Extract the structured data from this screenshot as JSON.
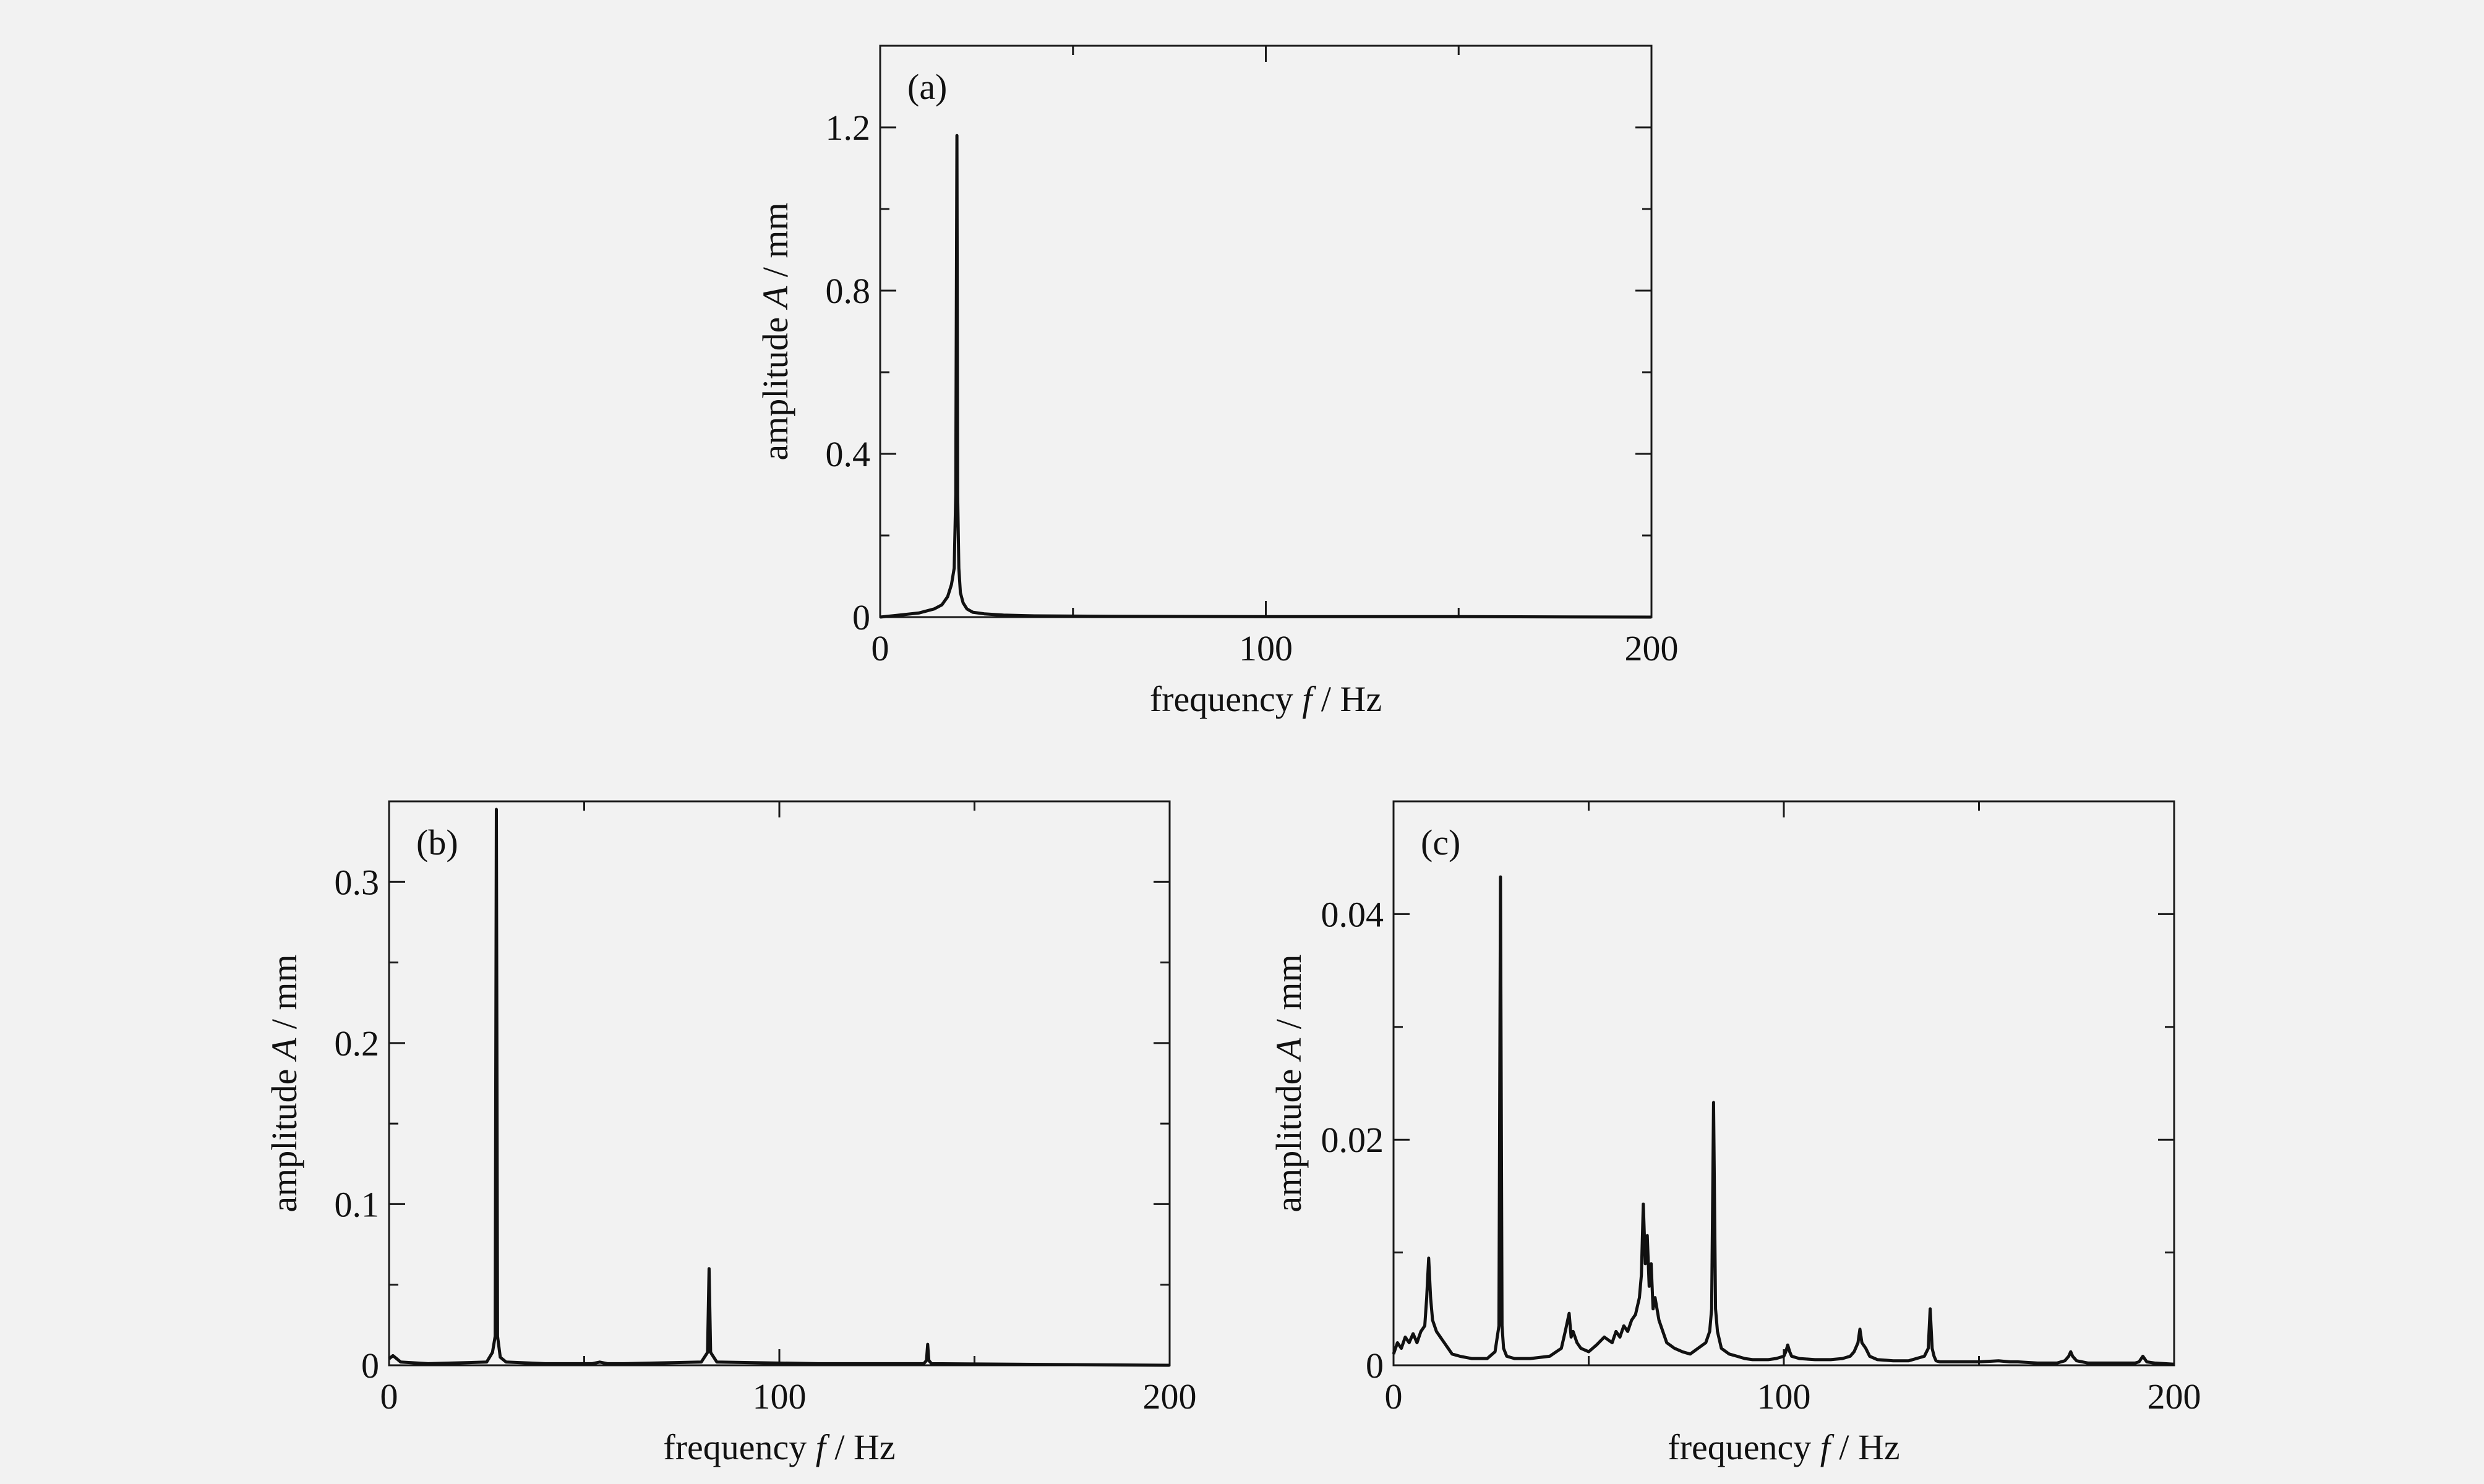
{
  "chart_data": [
    {
      "id": "a",
      "type": "line",
      "panel_label": "(a)",
      "xlabel": "frequency f / Hz",
      "xlabel_parts": [
        "frequency ",
        "f",
        " / Hz"
      ],
      "ylabel": "amplitude A / mm",
      "ylabel_parts": [
        "amplitude ",
        "A",
        " / mm"
      ],
      "xlim": [
        0,
        200
      ],
      "ylim": [
        0,
        1.4
      ],
      "xticks": [
        0,
        100,
        200
      ],
      "xtick_labels": [
        "0",
        "100",
        "200"
      ],
      "yticks": [
        0,
        0.4,
        0.8,
        1.2
      ],
      "ytick_labels": [
        "0",
        "0.4",
        "0.8",
        "1.2"
      ],
      "minor_xticks": [
        50,
        150
      ],
      "minor_yticks": [
        0.2,
        0.6,
        1.0
      ],
      "grid": false,
      "series": [
        {
          "x": [
            0,
            5,
            10,
            14,
            16,
            17.5,
            18.5,
            19.2,
            19.6,
            19.9,
            20.1,
            20.4,
            20.8,
            21.5,
            22.5,
            24,
            27,
            32,
            40,
            60,
            100,
            150,
            200
          ],
          "y": [
            0.0,
            0.005,
            0.01,
            0.02,
            0.03,
            0.05,
            0.08,
            0.12,
            0.3,
            1.18,
            0.3,
            0.12,
            0.06,
            0.035,
            0.02,
            0.012,
            0.008,
            0.005,
            0.003,
            0.002,
            0.001,
            0.001,
            0.0
          ]
        }
      ]
    },
    {
      "id": "b",
      "type": "line",
      "panel_label": "(b)",
      "xlabel": "frequency f / Hz",
      "xlabel_parts": [
        "frequency ",
        "f",
        " / Hz"
      ],
      "ylabel": "amplitude A / mm",
      "ylabel_parts": [
        "amplitude ",
        "A",
        " / mm"
      ],
      "xlim": [
        0,
        200
      ],
      "ylim": [
        0,
        0.35
      ],
      "xticks": [
        0,
        100,
        200
      ],
      "xtick_labels": [
        "0",
        "100",
        "200"
      ],
      "yticks": [
        0,
        0.1,
        0.2,
        0.3
      ],
      "ytick_labels": [
        "0",
        "0.1",
        "0.2",
        "0.3"
      ],
      "minor_xticks": [
        50,
        150
      ],
      "minor_yticks": [
        0.05,
        0.15,
        0.25
      ],
      "grid": false,
      "series": [
        {
          "x": [
            0,
            1,
            2,
            3,
            10,
            25,
            26.5,
            27.2,
            27.5,
            27.8,
            28.5,
            30,
            40,
            52,
            54,
            56,
            60,
            80,
            81.6,
            82,
            82.4,
            84,
            110,
            137,
            137.7,
            138,
            138.3,
            139,
            170,
            200
          ],
          "y": [
            0.004,
            0.006,
            0.004,
            0.002,
            0.001,
            0.002,
            0.008,
            0.018,
            0.345,
            0.018,
            0.005,
            0.002,
            0.001,
            0.001,
            0.002,
            0.001,
            0.001,
            0.002,
            0.008,
            0.06,
            0.008,
            0.002,
            0.001,
            0.001,
            0.003,
            0.013,
            0.003,
            0.001,
            0.0005,
            0.0
          ]
        }
      ]
    },
    {
      "id": "c",
      "type": "line",
      "panel_label": "(c)",
      "xlabel": "frequency f / Hz",
      "xlabel_parts": [
        "frequency ",
        "f",
        " / Hz"
      ],
      "ylabel": "amplitude A / mm",
      "ylabel_parts": [
        "amplitude ",
        "A",
        " / mm"
      ],
      "xlim": [
        0,
        200
      ],
      "ylim": [
        0,
        0.05
      ],
      "xticks": [
        0,
        100,
        200
      ],
      "xtick_labels": [
        "0",
        "100",
        "200"
      ],
      "yticks": [
        0,
        0.02,
        0.04
      ],
      "ytick_labels": [
        "0",
        "0.02",
        "0.04"
      ],
      "minor_xticks": [
        50,
        150
      ],
      "minor_yticks": [
        0.01,
        0.03
      ],
      "grid": false,
      "series": [
        {
          "x": [
            0,
            1,
            2,
            3,
            4,
            5,
            6,
            7,
            8,
            8.5,
            9,
            9.5,
            10,
            11,
            12,
            13,
            14,
            15,
            17,
            20,
            24,
            26,
            27,
            27.4,
            27.8,
            28.2,
            29,
            31,
            35,
            40,
            43,
            44,
            45,
            45.5,
            46,
            47,
            48,
            50,
            52,
            54,
            56,
            57,
            58,
            59,
            60,
            61,
            62,
            63,
            63.5,
            64,
            64.5,
            65,
            65.5,
            66,
            66.5,
            67,
            68,
            69,
            70,
            72,
            74,
            76,
            78,
            80,
            81,
            81.5,
            82,
            82.5,
            83,
            84,
            86,
            88,
            90,
            92,
            94,
            96,
            98,
            100,
            100.5,
            101,
            101.5,
            102,
            104,
            108,
            112,
            115,
            117,
            118,
            119,
            119.5,
            120,
            121,
            122,
            124,
            128,
            132,
            136,
            137,
            137.5,
            138,
            138.5,
            139,
            140,
            145,
            150,
            155,
            158,
            160,
            165,
            170,
            172,
            173,
            173.5,
            174,
            175,
            178,
            185,
            190,
            191,
            192,
            193,
            195,
            200
          ],
          "y": [
            0.001,
            0.002,
            0.0015,
            0.0025,
            0.002,
            0.0028,
            0.002,
            0.003,
            0.0035,
            0.006,
            0.0095,
            0.006,
            0.004,
            0.003,
            0.0025,
            0.002,
            0.0015,
            0.001,
            0.0008,
            0.0006,
            0.0006,
            0.0012,
            0.0035,
            0.0433,
            0.0035,
            0.0015,
            0.0008,
            0.0006,
            0.0006,
            0.0008,
            0.0015,
            0.003,
            0.0046,
            0.0025,
            0.003,
            0.002,
            0.0015,
            0.0012,
            0.0018,
            0.0025,
            0.002,
            0.003,
            0.0025,
            0.0035,
            0.003,
            0.004,
            0.0045,
            0.006,
            0.008,
            0.0143,
            0.009,
            0.0115,
            0.007,
            0.009,
            0.005,
            0.006,
            0.004,
            0.003,
            0.002,
            0.0015,
            0.0012,
            0.001,
            0.0015,
            0.002,
            0.003,
            0.005,
            0.0233,
            0.005,
            0.003,
            0.0015,
            0.001,
            0.0008,
            0.0006,
            0.0005,
            0.0005,
            0.0005,
            0.0006,
            0.0008,
            0.0012,
            0.0018,
            0.0012,
            0.0008,
            0.0006,
            0.0005,
            0.0005,
            0.0006,
            0.0008,
            0.0012,
            0.002,
            0.0032,
            0.002,
            0.0015,
            0.0008,
            0.0005,
            0.0004,
            0.0004,
            0.0008,
            0.0015,
            0.005,
            0.0015,
            0.0008,
            0.0004,
            0.0003,
            0.0003,
            0.0003,
            0.0004,
            0.0003,
            0.0003,
            0.0002,
            0.0002,
            0.0004,
            0.0008,
            0.0012,
            0.0008,
            0.0004,
            0.0002,
            0.0002,
            0.0002,
            0.0003,
            0.0008,
            0.0003,
            0.0002,
            0.0001
          ]
        }
      ]
    }
  ]
}
